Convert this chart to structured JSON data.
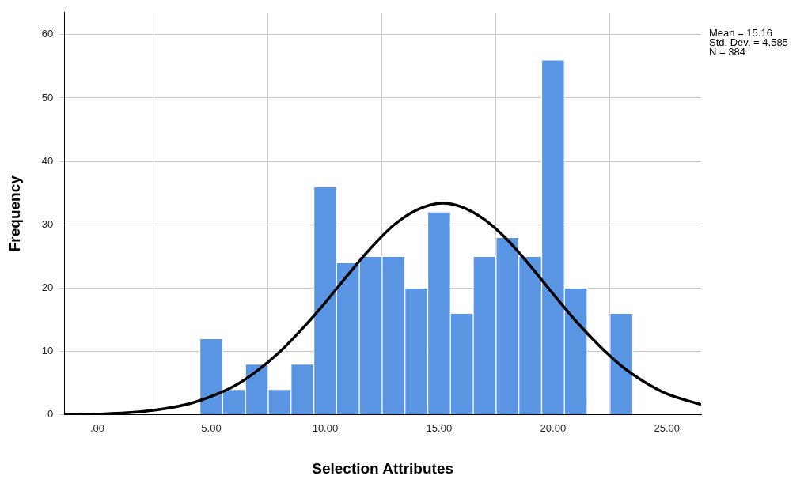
{
  "chart_data": {
    "type": "histogram",
    "xlabel": "Selection Attributes",
    "ylabel": "Frequency",
    "bins": [
      4.5,
      5.5,
      6.5,
      7.5,
      8.5,
      9.5,
      10.5,
      11.5,
      12.5,
      13.5,
      14.5,
      15.5,
      16.5,
      17.5,
      18.5,
      19.5,
      20.5,
      21.5,
      22.5,
      23.5
    ],
    "values": [
      12,
      4,
      8,
      4,
      8,
      36,
      24,
      25,
      25,
      20,
      32,
      16,
      25,
      28,
      25,
      56,
      20,
      0,
      16
    ],
    "color": "#5a95e3",
    "series": [
      {
        "type": "line",
        "color": "#000000",
        "x": [
          -1.45,
          0,
          2,
          4,
          5,
          6,
          7,
          8,
          9,
          10,
          11,
          12,
          13,
          14,
          15.16,
          16,
          17,
          18,
          19,
          20,
          21,
          22,
          23,
          24,
          25,
          26.5
        ],
        "values": [
          0.0,
          0.1,
          0.5,
          1.7,
          2.9,
          4.5,
          6.9,
          9.9,
          13.6,
          17.7,
          22.1,
          26.3,
          29.9,
          32.3,
          33.4,
          32.8,
          30.8,
          27.6,
          23.5,
          19.1,
          14.8,
          11.0,
          7.7,
          5.2,
          3.3,
          1.6
        ]
      }
    ],
    "xlim": [
      -1.45,
      26.5
    ],
    "xticks": [
      {
        "value": 0,
        "label": ".00"
      },
      {
        "value": 5,
        "label": "5.00"
      },
      {
        "value": 10,
        "label": "10.00"
      },
      {
        "value": 15,
        "label": "15.00"
      },
      {
        "value": 20,
        "label": "20.00"
      },
      {
        "value": 25,
        "label": "25.00"
      }
    ],
    "ylim": [
      0,
      63.5
    ],
    "yticks": [
      0,
      10,
      20,
      30,
      40,
      50,
      60
    ],
    "grid": true,
    "legend": false,
    "marker": "none",
    "annotations": [
      "Mean = 15.16",
      "Std. Dev. = 4.585",
      "N = 384"
    ]
  }
}
